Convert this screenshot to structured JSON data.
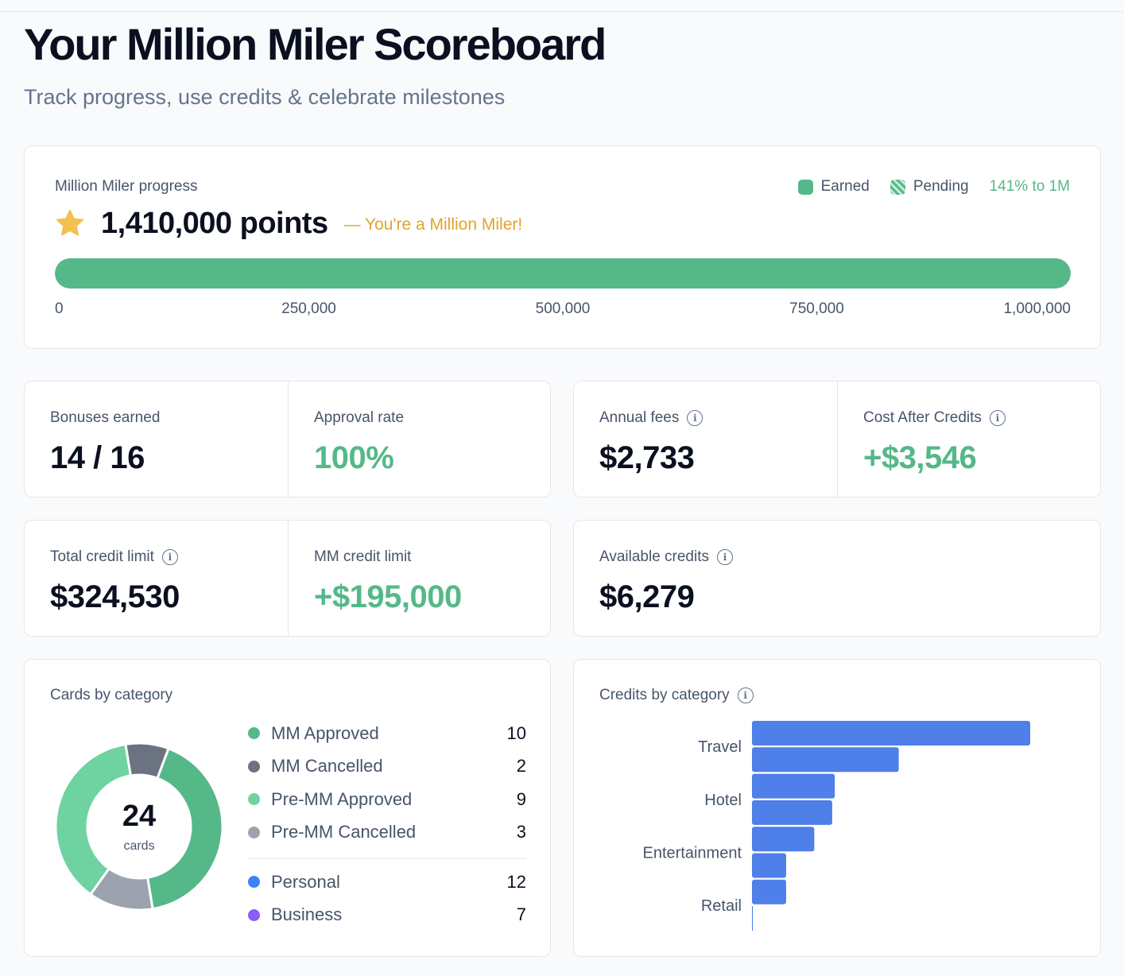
{
  "header": {
    "title": "Your Million Miler Scoreboard",
    "subtitle": "Track progress, use credits & celebrate milestones"
  },
  "progress": {
    "label": "Million Miler progress",
    "legend_earned": "Earned",
    "legend_pending": "Pending",
    "percent_text": "141% to 1M",
    "points_text": "1,410,000 points",
    "note": "— You're a Million Miler!",
    "fill_fraction": 1.0,
    "ticks": [
      "0",
      "250,000",
      "500,000",
      "750,000",
      "1,000,000"
    ],
    "colors": {
      "earned": "#55b889",
      "note": "#e2a32d",
      "star": "#f2c14e"
    }
  },
  "stats": {
    "bonuses": {
      "label": "Bonuses earned",
      "value": "14 / 16"
    },
    "approval": {
      "label": "Approval rate",
      "value": "100%"
    },
    "annual_fees": {
      "label": "Annual fees",
      "value": "$2,733"
    },
    "cost_after": {
      "label": "Cost After Credits",
      "value": "+$3,546"
    },
    "total_credit": {
      "label": "Total credit limit",
      "value": "$324,530"
    },
    "mm_credit": {
      "label": "MM credit limit",
      "value": "+$195,000"
    },
    "available": {
      "label": "Available credits",
      "value": "$6,279"
    }
  },
  "cards_by_category": {
    "title": "Cards by category",
    "total": "24",
    "total_caption": "cards",
    "items": [
      {
        "label": "MM Approved",
        "count": "10",
        "color": "#55b889"
      },
      {
        "label": "MM Cancelled",
        "count": "2",
        "color": "#6b7280"
      },
      {
        "label": "Pre-MM Approved",
        "count": "9",
        "color": "#6ed3a0"
      },
      {
        "label": "Pre-MM Cancelled",
        "count": "3",
        "color": "#9ca3af"
      }
    ],
    "types": [
      {
        "label": "Personal",
        "count": "12",
        "color": "#3b82f6"
      },
      {
        "label": "Business",
        "count": "7",
        "color": "#8b5cf6"
      }
    ]
  },
  "credits_by_category": {
    "title": "Credits by category"
  },
  "chart_data": {
    "type": "bar",
    "orientation": "horizontal",
    "title": "Credits by category",
    "categories": [
      "",
      "Travel",
      "",
      "Hotel",
      "",
      "Entertainment",
      "",
      "Retail"
    ],
    "values": [
      1630,
      860,
      485,
      470,
      365,
      200,
      200,
      5
    ],
    "color": "#4f7fe8",
    "xlim": [
      0,
      1630
    ],
    "axis_labels_shown": false,
    "grid": false
  }
}
